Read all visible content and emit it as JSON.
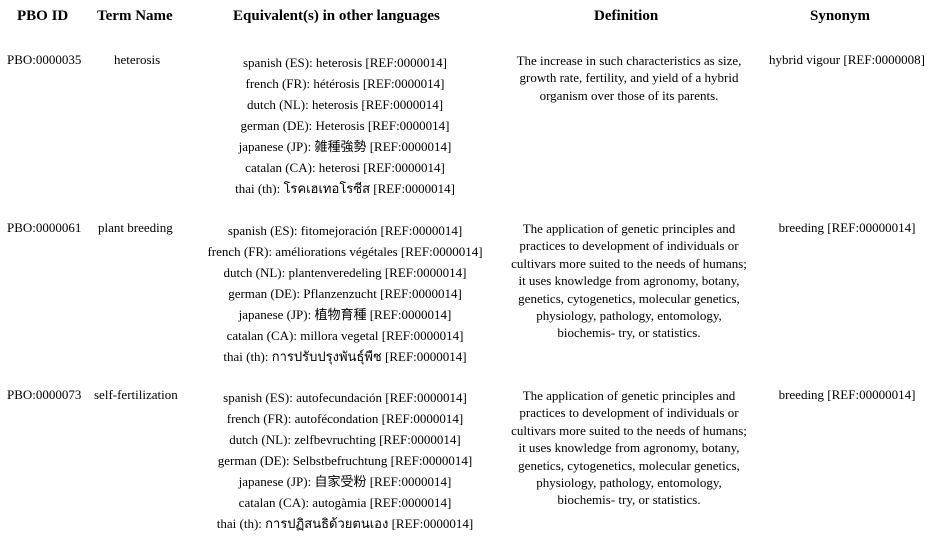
{
  "headers": {
    "pbo_id": "PBO ID",
    "term_name": "Term Name",
    "equivalents": "Equivalent(s) in other languages",
    "definition": "Definition",
    "synonym": "Synonym"
  },
  "rows": [
    {
      "id": "PBO:0000035",
      "term": "heterosis",
      "equivalents": [
        "spanish (ES): heterosis [REF:0000014]",
        "french (FR): hétérosis [REF:0000014]",
        "dutch (NL): heterosis [REF:0000014]",
        "german (DE): Heterosis [REF:0000014]",
        "japanese (JP): 雑種強勢 [REF:0000014]",
        "catalan (CA): heterosi [REF:0000014]",
        "thai (th): โรคเฮเทอโรซีส [REF:0000014]"
      ],
      "definition": "The increase in such characteristics as size, growth rate, fertility, and yield of a hybrid organism over those of its parents.",
      "synonym": "hybrid vigour [REF:0000008]"
    },
    {
      "id": "PBO:0000061",
      "term": "plant breeding",
      "equivalents": [
        "spanish (ES): fitomejoración [REF:0000014]",
        "french (FR): améliorations végétales  [REF:0000014]",
        "dutch (NL): plantenveredeling [REF:0000014]",
        "german (DE): Pflanzenzucht [REF:0000014]",
        "japanese (JP): 植物育種 [REF:0000014]",
        "catalan (CA): millora vegetal [REF:0000014]",
        "thai (th): การปรับปรุงพันธุ์พืช [REF:0000014]"
      ],
      "definition": "The application of genetic principles and practices to development of individuals or cultivars more suited to the needs of humans; it uses knowledge from agronomy, botany, genetics, cytogenetics, molecular genetics, physiology, pathology, entomology, biochemis- try, or statistics.",
      "synonym": "breeding  [REF:00000014]"
    },
    {
      "id": "PBO:0000073",
      "term": "self-fertilization",
      "equivalents": [
        "spanish (ES): autofecundación [REF:0000014]",
        "french (FR): autofécondation  [REF:0000014]",
        "dutch (NL): zelfbevruchting [REF:0000014]",
        "german (DE): Selbstbefruchtung [REF:0000014]",
        "japanese (JP): 自家受粉 [REF:0000014]",
        "catalan (CA): autogàmia [REF:0000014]",
        "thai (th): การปฏิสนธิด้วยตนเอง [REF:0000014]"
      ],
      "definition": "The application of genetic principles and practices to development of individuals or cultivars more suited to the needs of humans; it uses knowledge from agronomy, botany, genetics, cytogenetics, molecular genetics, physiology, pathology, entomology, biochemis- try, or statistics.",
      "synonym": "breeding  [REF:00000014]"
    }
  ]
}
